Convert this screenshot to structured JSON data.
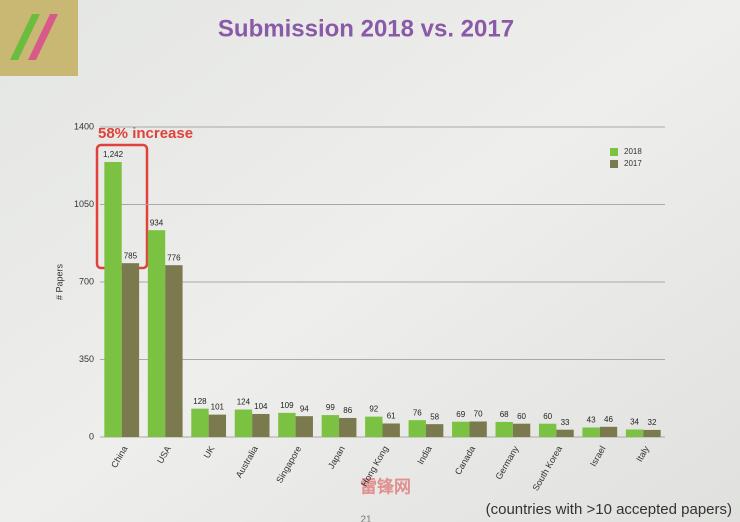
{
  "chart_data": {
    "type": "bar",
    "title": "Submission 2018 vs. 2017",
    "y_label": "# Papers",
    "annotation": "58% increase",
    "footnote": "(countries with >10 accepted papers)",
    "watermark": "雷锋网",
    "page_number": "21",
    "categories": [
      "China",
      "USA",
      "UK",
      "Australia",
      "Singapore",
      "Japan",
      "Hong Kong",
      "India",
      "Canada",
      "Germany",
      "South Korea",
      "Israel",
      "Italy"
    ],
    "series": [
      {
        "name": "2018",
        "color": "#7cc242",
        "values": [
          1242,
          934,
          128,
          124,
          109,
          99,
          92,
          76,
          69,
          68,
          60,
          43,
          34
        ],
        "value_labels": [
          "1,242",
          "934",
          "128",
          "124",
          "109",
          "99",
          "92",
          "76",
          "69",
          "68",
          "60",
          "43",
          "34"
        ]
      },
      {
        "name": "2017",
        "color": "#7b7a4f",
        "values": [
          785,
          776,
          101,
          104,
          94,
          86,
          61,
          58,
          70,
          60,
          33,
          46,
          32
        ]
      }
    ],
    "ylim": [
      0,
      1400
    ],
    "yticks": [
      0,
      350,
      700,
      1050,
      1400
    ],
    "grid": true,
    "legend": "top-right"
  }
}
